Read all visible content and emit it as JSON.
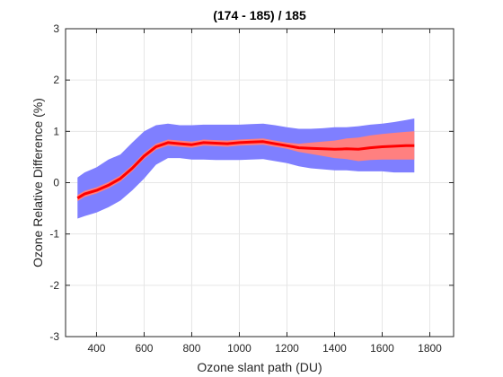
{
  "chart_data": {
    "type": "line",
    "title": "(174 - 185) / 185",
    "xlabel": "Ozone slant path (DU)",
    "ylabel": "Ozone Relative Difference (%)",
    "xlim": [
      270,
      1900
    ],
    "ylim": [
      -3,
      3
    ],
    "xticks": [
      "400",
      "600",
      "800",
      "1000",
      "1200",
      "1400",
      "1600",
      "1800"
    ],
    "yticks": [
      "-3",
      "-2",
      "-1",
      "0",
      "1",
      "2",
      "3"
    ],
    "grid": true,
    "colors": {
      "mean_line": "#ff0000",
      "outer_band": "#7f7fff",
      "inner_band": "#ff8080",
      "grid": "#e6e6e6",
      "axis": "#262626"
    },
    "series": [
      {
        "x": [
          320,
          350,
          400,
          450,
          500,
          550,
          600,
          650,
          700,
          750,
          800,
          850,
          900,
          950,
          1000,
          1050,
          1100,
          1150,
          1200,
          1250,
          1300,
          1350,
          1400,
          1450,
          1500,
          1550,
          1600,
          1650,
          1700,
          1735
        ],
        "y": [
          -0.3,
          -0.22,
          -0.15,
          -0.05,
          0.08,
          0.28,
          0.52,
          0.7,
          0.78,
          0.76,
          0.74,
          0.78,
          0.77,
          0.76,
          0.78,
          0.79,
          0.8,
          0.76,
          0.72,
          0.68,
          0.67,
          0.66,
          0.65,
          0.66,
          0.65,
          0.68,
          0.7,
          0.71,
          0.72,
          0.72
        ],
        "upper": [
          0.1,
          0.2,
          0.3,
          0.45,
          0.55,
          0.78,
          1.0,
          1.12,
          1.15,
          1.12,
          1.12,
          1.13,
          1.13,
          1.13,
          1.13,
          1.14,
          1.15,
          1.12,
          1.08,
          1.05,
          1.05,
          1.06,
          1.08,
          1.08,
          1.1,
          1.13,
          1.15,
          1.18,
          1.22,
          1.25
        ],
        "lower": [
          -0.7,
          -0.65,
          -0.58,
          -0.48,
          -0.35,
          -0.15,
          0.08,
          0.35,
          0.48,
          0.48,
          0.45,
          0.45,
          0.44,
          0.44,
          0.44,
          0.45,
          0.46,
          0.42,
          0.38,
          0.32,
          0.28,
          0.26,
          0.24,
          0.24,
          0.22,
          0.22,
          0.22,
          0.2,
          0.2,
          0.2
        ],
        "inner_upper": [
          -0.24,
          -0.16,
          -0.09,
          0.01,
          0.14,
          0.34,
          0.58,
          0.76,
          0.84,
          0.82,
          0.8,
          0.84,
          0.83,
          0.82,
          0.84,
          0.85,
          0.86,
          0.82,
          0.78,
          0.76,
          0.78,
          0.8,
          0.82,
          0.86,
          0.88,
          0.92,
          0.95,
          0.97,
          0.99,
          1.0
        ],
        "inner_lower": [
          -0.36,
          -0.28,
          -0.21,
          -0.11,
          0.02,
          0.22,
          0.46,
          0.64,
          0.72,
          0.7,
          0.68,
          0.72,
          0.71,
          0.7,
          0.72,
          0.73,
          0.74,
          0.7,
          0.66,
          0.6,
          0.56,
          0.52,
          0.48,
          0.46,
          0.42,
          0.44,
          0.45,
          0.45,
          0.45,
          0.45
        ]
      }
    ]
  }
}
